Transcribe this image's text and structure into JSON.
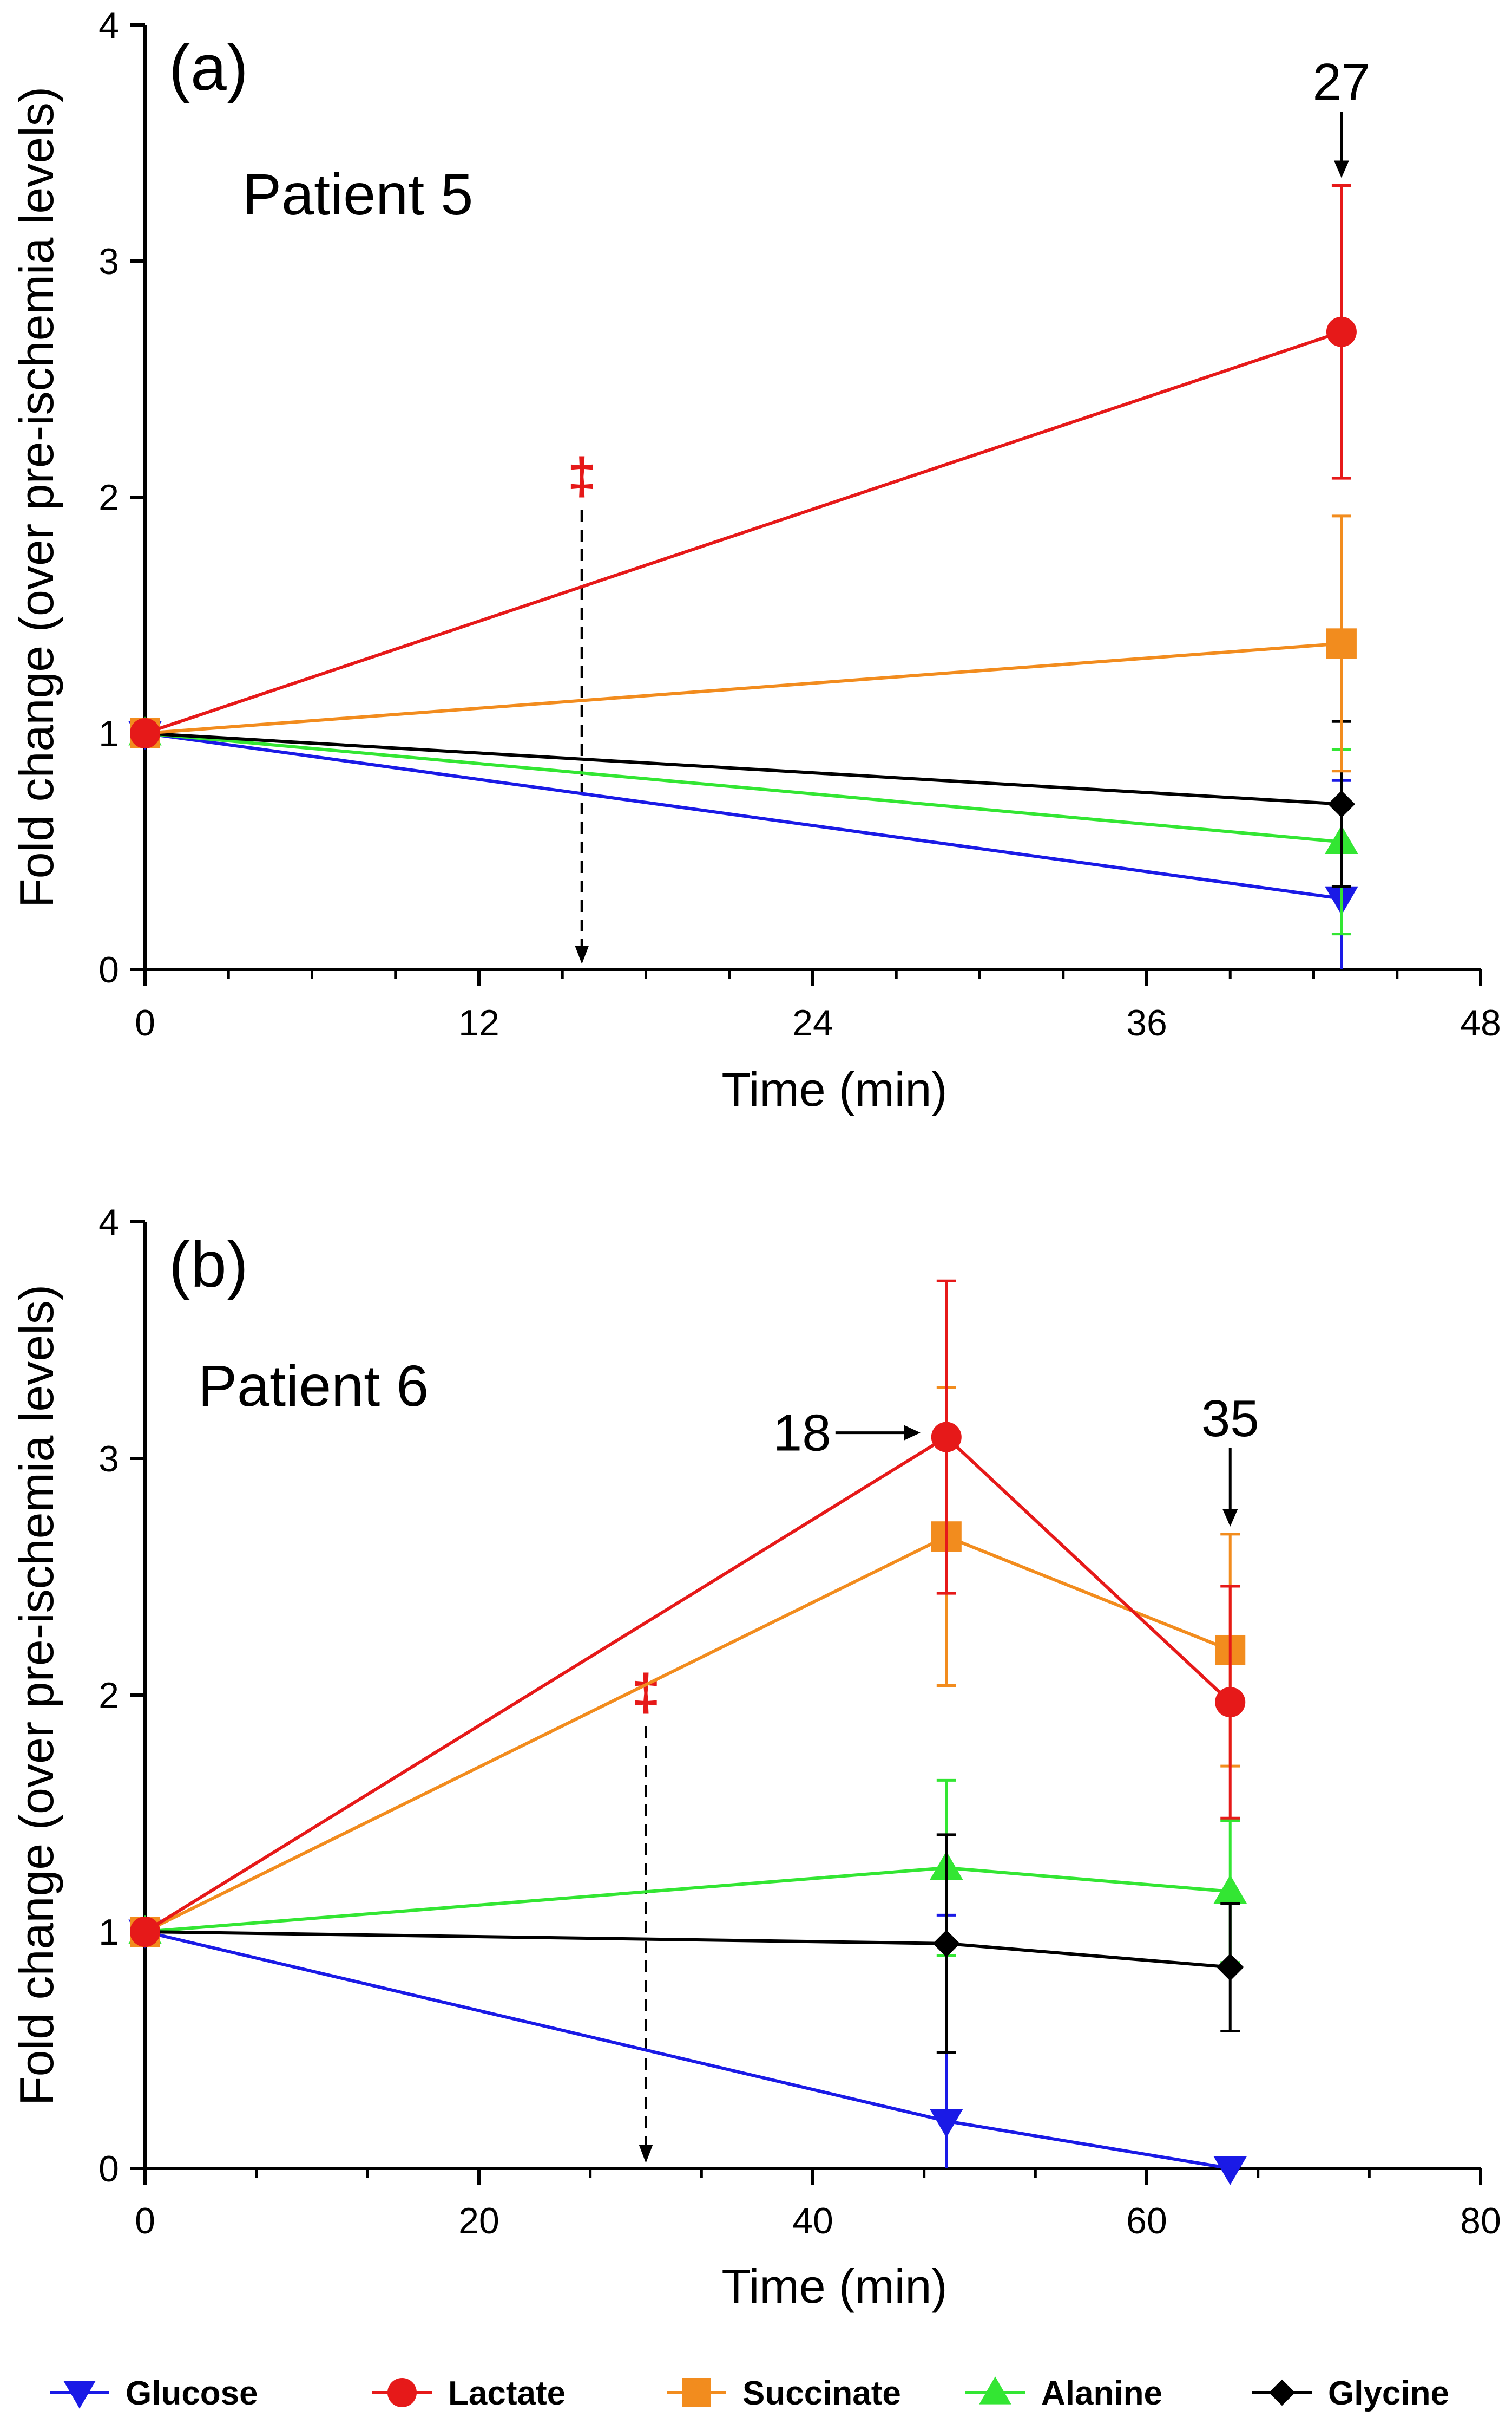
{
  "legend": {
    "entries": [
      {
        "name": "Glucose",
        "color": "#1a1ae6",
        "marker": "triangle-down"
      },
      {
        "name": "Lactate",
        "color": "#e61919",
        "marker": "circle"
      },
      {
        "name": "Succinate",
        "color": "#f28c1e",
        "marker": "square"
      },
      {
        "name": "Alanine",
        "color": "#33e633",
        "marker": "triangle-up"
      },
      {
        "name": "Glycine",
        "color": "#000000",
        "marker": "diamond"
      }
    ]
  },
  "chart_data": [
    {
      "type": "line",
      "panel_label": "(a)",
      "annotation": "Patient 5",
      "xlabel": "Time (min)",
      "ylabel": "Fold change (over pre-ischemia levels)",
      "xlim": [
        0,
        48
      ],
      "ylim": [
        0,
        4
      ],
      "xticks": [
        "0",
        "12",
        "24",
        "36",
        "48"
      ],
      "yticks": [
        "0",
        "1",
        "2",
        "3",
        "4"
      ],
      "marker_text": "‡",
      "marker_x": 15.7,
      "callouts": [
        {
          "text": "27",
          "series": "Lactate",
          "x": 43
        }
      ],
      "series": [
        {
          "name": "Glucose",
          "x": [
            0,
            43
          ],
          "y": [
            1,
            0.3
          ],
          "err": [
            0,
            0.5
          ]
        },
        {
          "name": "Lactate",
          "x": [
            0,
            43
          ],
          "y": [
            1,
            2.7
          ],
          "err": [
            0,
            0.62
          ]
        },
        {
          "name": "Succinate",
          "x": [
            0,
            43
          ],
          "y": [
            1,
            1.38
          ],
          "err": [
            0,
            0.54
          ]
        },
        {
          "name": "Alanine",
          "x": [
            0,
            43
          ],
          "y": [
            1,
            0.54
          ],
          "err": [
            0,
            0.39
          ]
        },
        {
          "name": "Glycine",
          "x": [
            0,
            43
          ],
          "y": [
            1,
            0.7
          ],
          "err": [
            0,
            0.35
          ]
        }
      ]
    },
    {
      "type": "line",
      "panel_label": "(b)",
      "annotation": "Patient 6",
      "xlabel": "Time (min)",
      "ylabel": "Fold change (over pre-ischemia levels)",
      "xlim": [
        0,
        80
      ],
      "ylim": [
        0,
        4
      ],
      "xticks": [
        "0",
        "20",
        "40",
        "60",
        "80"
      ],
      "yticks": [
        "0",
        "1",
        "2",
        "3",
        "4"
      ],
      "marker_text": "‡",
      "marker_x": 30,
      "callouts": [
        {
          "text": "18",
          "series": "Lactate",
          "x": 48,
          "direction": "right"
        },
        {
          "text": "35",
          "series": "Succinate",
          "x": 65,
          "direction": "down"
        }
      ],
      "series": [
        {
          "name": "Glucose",
          "x": [
            0,
            48,
            65
          ],
          "y": [
            1,
            0.2,
            0.0
          ],
          "err": [
            0,
            0.87,
            0
          ]
        },
        {
          "name": "Lactate",
          "x": [
            0,
            48,
            65
          ],
          "y": [
            1,
            3.09,
            1.97
          ],
          "err": [
            0,
            0.66,
            0.49
          ]
        },
        {
          "name": "Succinate",
          "x": [
            0,
            48,
            65
          ],
          "y": [
            1,
            2.67,
            2.19
          ],
          "err": [
            0,
            0.63,
            0.49
          ]
        },
        {
          "name": "Alanine",
          "x": [
            0,
            48,
            65
          ],
          "y": [
            1,
            1.27,
            1.17
          ],
          "err": [
            0,
            0.37,
            0.3
          ]
        },
        {
          "name": "Glycine",
          "x": [
            0,
            48,
            65
          ],
          "y": [
            1,
            0.95,
            0.85
          ],
          "err": [
            0,
            0.46,
            0.27
          ]
        }
      ]
    }
  ]
}
